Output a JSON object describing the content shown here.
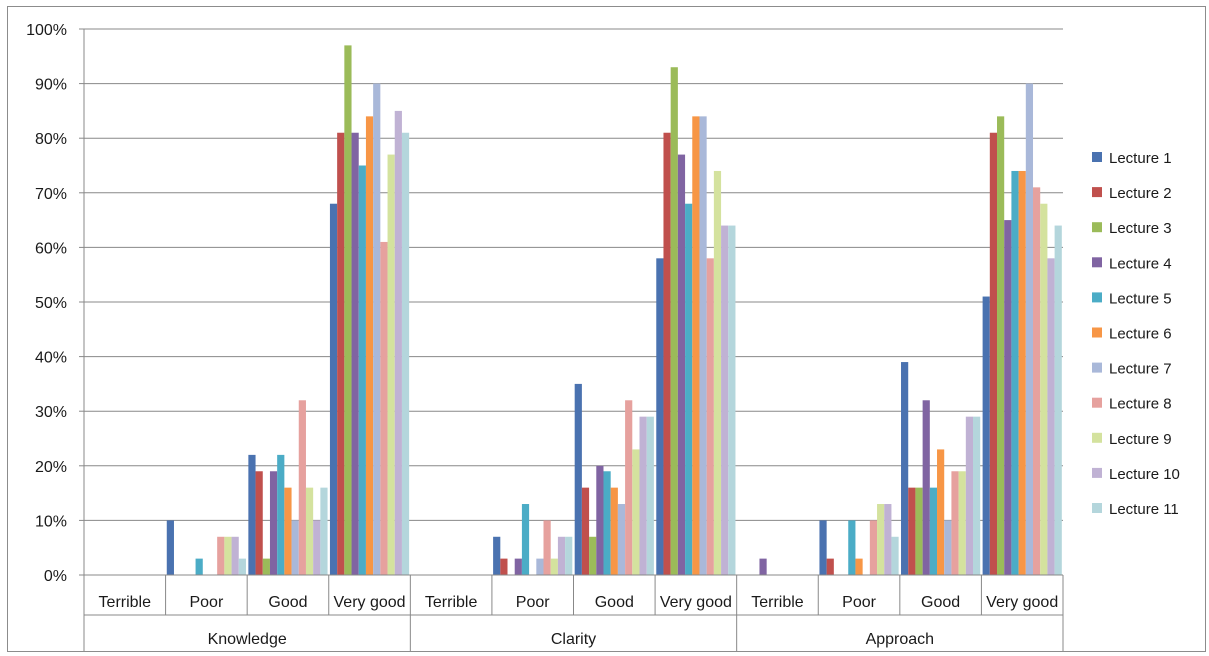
{
  "chart_data": {
    "type": "bar",
    "title": "",
    "xlabel": "",
    "ylabel": "",
    "ylim": [
      0,
      100
    ],
    "ytick_labels": [
      "0%",
      "10%",
      "20%",
      "30%",
      "40%",
      "50%",
      "60%",
      "70%",
      "80%",
      "90%",
      "100%"
    ],
    "groups": [
      "Knowledge",
      "Clarity",
      "Approach"
    ],
    "categories": [
      "Terrible",
      "Poor",
      "Good",
      "Very good"
    ],
    "grid": true,
    "legend_position": "right",
    "series": [
      {
        "name": "Lecture 1",
        "color": "#4a72b0",
        "values": [
          [
            0,
            10,
            22,
            68
          ],
          [
            0,
            7,
            35,
            58
          ],
          [
            0,
            10,
            39,
            51
          ]
        ]
      },
      {
        "name": "Lecture 2",
        "color": "#c0504d",
        "values": [
          [
            0,
            0,
            19,
            81
          ],
          [
            0,
            3,
            16,
            81
          ],
          [
            0,
            3,
            16,
            81
          ]
        ]
      },
      {
        "name": "Lecture 3",
        "color": "#9bbb59",
        "values": [
          [
            0,
            0,
            3,
            97
          ],
          [
            0,
            0,
            7,
            93
          ],
          [
            0,
            0,
            16,
            84
          ]
        ]
      },
      {
        "name": "Lecture 4",
        "color": "#8064a2",
        "values": [
          [
            0,
            0,
            19,
            81
          ],
          [
            0,
            3,
            20,
            77
          ],
          [
            3,
            0,
            32,
            65
          ]
        ]
      },
      {
        "name": "Lecture 5",
        "color": "#4bacc6",
        "values": [
          [
            0,
            3,
            22,
            75
          ],
          [
            0,
            13,
            19,
            68
          ],
          [
            0,
            10,
            16,
            74
          ]
        ]
      },
      {
        "name": "Lecture 6",
        "color": "#f79646",
        "values": [
          [
            0,
            0,
            16,
            84
          ],
          [
            0,
            0,
            16,
            84
          ],
          [
            0,
            3,
            23,
            74
          ]
        ]
      },
      {
        "name": "Lecture 7",
        "color": "#a9b8d9",
        "values": [
          [
            0,
            0,
            10,
            90
          ],
          [
            0,
            3,
            13,
            84
          ],
          [
            0,
            0,
            10,
            90
          ]
        ]
      },
      {
        "name": "Lecture 8",
        "color": "#e6a19e",
        "values": [
          [
            0,
            7,
            32,
            61
          ],
          [
            0,
            10,
            32,
            58
          ],
          [
            0,
            10,
            19,
            71
          ]
        ]
      },
      {
        "name": "Lecture 9",
        "color": "#d4e29e",
        "values": [
          [
            0,
            7,
            16,
            77
          ],
          [
            0,
            3,
            23,
            74
          ],
          [
            0,
            13,
            19,
            68
          ]
        ]
      },
      {
        "name": "Lecture 10",
        "color": "#c0b2d4",
        "values": [
          [
            0,
            7,
            10,
            85
          ],
          [
            0,
            7,
            29,
            64
          ],
          [
            0,
            13,
            29,
            58
          ]
        ]
      },
      {
        "name": "Lecture 11",
        "color": "#b4d6dc",
        "values": [
          [
            0,
            3,
            16,
            81
          ],
          [
            0,
            7,
            29,
            64
          ],
          [
            0,
            7,
            29,
            64
          ]
        ]
      }
    ]
  },
  "style": {
    "grid_color": "#888888",
    "axis_color": "#888888",
    "text_color": "#1a1a1a"
  }
}
